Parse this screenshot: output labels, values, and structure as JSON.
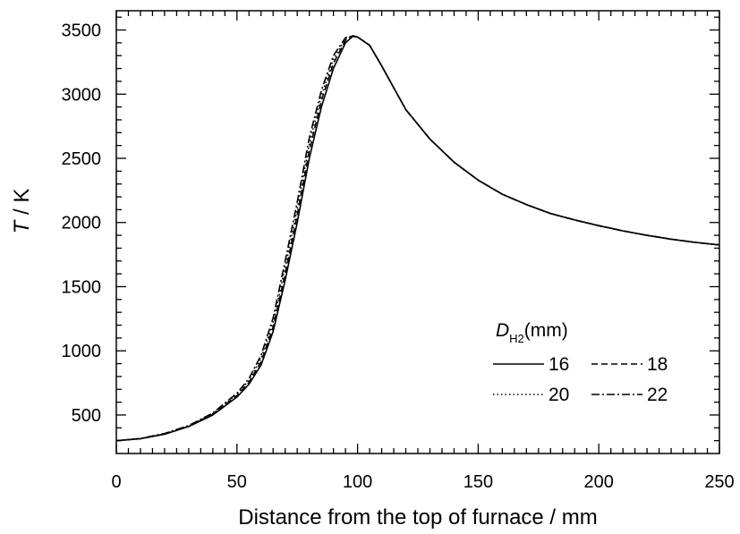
{
  "chart_data": {
    "type": "line",
    "xlabel": "Distance from the top of furnace / mm",
    "ylabel_italic": "T",
    "ylabel_rest": " / K",
    "xlim": [
      0,
      250
    ],
    "ylim": [
      200,
      3650
    ],
    "xticks": [
      0,
      50,
      100,
      150,
      200,
      250
    ],
    "yticks": [
      500,
      1000,
      1500,
      2000,
      2500,
      3000,
      3500
    ],
    "grid": false,
    "legend": {
      "placement": "lower-right",
      "title_main": "D",
      "title_sub": "H2",
      "title_unit": "(mm)"
    },
    "series": [
      {
        "name": "16",
        "dash": "solid",
        "points": [
          [
            0,
            300
          ],
          [
            10,
            315
          ],
          [
            20,
            350
          ],
          [
            30,
            410
          ],
          [
            40,
            500
          ],
          [
            50,
            640
          ],
          [
            55,
            740
          ],
          [
            60,
            890
          ],
          [
            65,
            1150
          ],
          [
            70,
            1550
          ],
          [
            75,
            2000
          ],
          [
            80,
            2500
          ],
          [
            85,
            2900
          ],
          [
            90,
            3200
          ],
          [
            95,
            3400
          ],
          [
            98,
            3450
          ],
          [
            100,
            3445
          ],
          [
            105,
            3380
          ],
          [
            110,
            3220
          ],
          [
            115,
            3050
          ],
          [
            120,
            2880
          ],
          [
            130,
            2650
          ],
          [
            140,
            2470
          ],
          [
            150,
            2330
          ],
          [
            160,
            2220
          ],
          [
            170,
            2140
          ],
          [
            180,
            2070
          ],
          [
            190,
            2020
          ],
          [
            200,
            1975
          ],
          [
            210,
            1935
          ],
          [
            220,
            1900
          ],
          [
            230,
            1870
          ],
          [
            240,
            1845
          ],
          [
            250,
            1825
          ]
        ]
      },
      {
        "name": "18",
        "dash": "dashed",
        "points": [
          [
            0,
            300
          ],
          [
            10,
            315
          ],
          [
            20,
            352
          ],
          [
            30,
            412
          ],
          [
            40,
            505
          ],
          [
            50,
            650
          ],
          [
            55,
            755
          ],
          [
            60,
            915
          ],
          [
            65,
            1185
          ],
          [
            70,
            1600
          ],
          [
            75,
            2060
          ],
          [
            80,
            2560
          ],
          [
            85,
            2950
          ],
          [
            90,
            3240
          ],
          [
            95,
            3420
          ],
          [
            98,
            3455
          ],
          [
            100,
            3445
          ],
          [
            105,
            3380
          ],
          [
            110,
            3220
          ],
          [
            115,
            3050
          ],
          [
            120,
            2880
          ],
          [
            130,
            2650
          ],
          [
            140,
            2470
          ],
          [
            150,
            2330
          ],
          [
            160,
            2220
          ],
          [
            170,
            2140
          ],
          [
            180,
            2070
          ],
          [
            190,
            2020
          ],
          [
            200,
            1975
          ],
          [
            210,
            1935
          ],
          [
            220,
            1900
          ],
          [
            230,
            1870
          ],
          [
            240,
            1845
          ],
          [
            250,
            1825
          ]
        ]
      },
      {
        "name": "20",
        "dash": "dotted",
        "points": [
          [
            0,
            300
          ],
          [
            10,
            316
          ],
          [
            20,
            354
          ],
          [
            30,
            415
          ],
          [
            40,
            510
          ],
          [
            50,
            660
          ],
          [
            55,
            770
          ],
          [
            60,
            940
          ],
          [
            65,
            1220
          ],
          [
            70,
            1650
          ],
          [
            75,
            2110
          ],
          [
            80,
            2610
          ],
          [
            85,
            2990
          ],
          [
            90,
            3270
          ],
          [
            95,
            3430
          ],
          [
            98,
            3455
          ],
          [
            100,
            3445
          ],
          [
            105,
            3380
          ],
          [
            110,
            3220
          ],
          [
            115,
            3050
          ],
          [
            120,
            2880
          ],
          [
            130,
            2650
          ],
          [
            140,
            2470
          ],
          [
            150,
            2330
          ],
          [
            160,
            2220
          ],
          [
            170,
            2140
          ],
          [
            180,
            2070
          ],
          [
            190,
            2020
          ],
          [
            200,
            1975
          ],
          [
            210,
            1935
          ],
          [
            220,
            1900
          ],
          [
            230,
            1870
          ],
          [
            240,
            1845
          ],
          [
            250,
            1825
          ]
        ]
      },
      {
        "name": "22",
        "dash": "dashdot",
        "points": [
          [
            0,
            300
          ],
          [
            10,
            317
          ],
          [
            20,
            356
          ],
          [
            30,
            418
          ],
          [
            40,
            515
          ],
          [
            50,
            670
          ],
          [
            55,
            785
          ],
          [
            60,
            965
          ],
          [
            65,
            1255
          ],
          [
            70,
            1700
          ],
          [
            75,
            2160
          ],
          [
            80,
            2660
          ],
          [
            85,
            3030
          ],
          [
            90,
            3300
          ],
          [
            95,
            3440
          ],
          [
            98,
            3455
          ],
          [
            100,
            3445
          ],
          [
            105,
            3380
          ],
          [
            110,
            3220
          ],
          [
            115,
            3050
          ],
          [
            120,
            2880
          ],
          [
            130,
            2650
          ],
          [
            140,
            2470
          ],
          [
            150,
            2330
          ],
          [
            160,
            2220
          ],
          [
            170,
            2140
          ],
          [
            180,
            2070
          ],
          [
            190,
            2020
          ],
          [
            200,
            1975
          ],
          [
            210,
            1935
          ],
          [
            220,
            1900
          ],
          [
            230,
            1870
          ],
          [
            240,
            1845
          ],
          [
            250,
            1825
          ]
        ]
      }
    ]
  }
}
